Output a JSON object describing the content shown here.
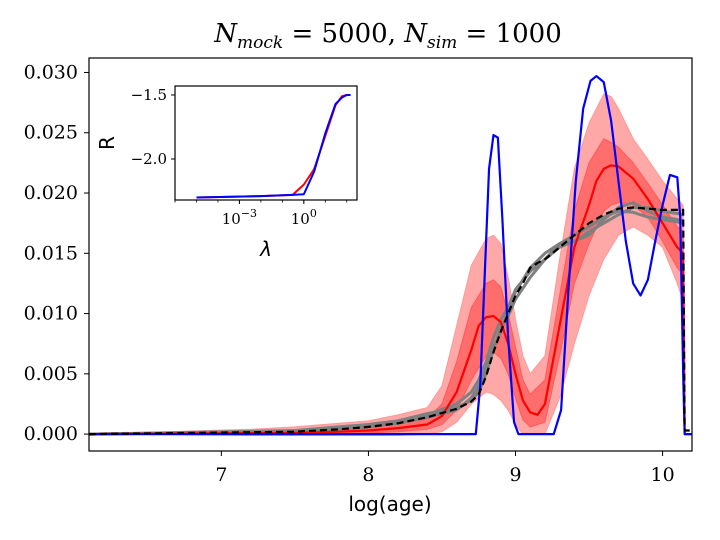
{
  "title": {
    "n_mock_symbol": "N",
    "n_mock_sub": "mock",
    "n_mock_value": "5000",
    "n_sim_symbol": "N",
    "n_sim_sub": "sim",
    "n_sim_value": "1000"
  },
  "colors": {
    "truth": "#0000ff",
    "median": "#ff0000",
    "band_outer": "#ff9999",
    "band_inner": "#ff5a5a",
    "samples": "#808080",
    "reference": "#000000"
  },
  "chart_data": [
    {
      "type": "line",
      "xlabel": "log(age)",
      "ylabel": "",
      "xlim": [
        6.1,
        10.2
      ],
      "ylim": [
        -0.0014,
        0.0312
      ],
      "x_ticks": [
        7,
        8,
        9,
        10
      ],
      "y_ticks": [
        0.0,
        0.005,
        0.01,
        0.015,
        0.02,
        0.025,
        0.03
      ],
      "y_tick_labels": [
        "0.000",
        "0.005",
        "0.010",
        "0.015",
        "0.020",
        "0.025",
        "0.030"
      ],
      "grid": false,
      "legend": "none",
      "series": [
        {
          "role": "truth",
          "color": "#0000ff",
          "x": [
            6.1,
            8.73,
            8.76,
            8.79,
            8.82,
            8.85,
            8.88,
            8.91,
            8.95,
            8.99,
            9.02,
            9.06,
            9.1,
            9.18,
            9.26,
            9.31,
            9.36,
            9.41,
            9.46,
            9.51,
            9.55,
            9.6,
            9.65,
            9.7,
            9.75,
            9.8,
            9.85,
            9.9,
            9.95,
            10.0,
            10.05,
            10.1,
            10.12,
            10.14,
            10.15,
            10.2
          ],
          "y": [
            0.0,
            0.0,
            0.004,
            0.013,
            0.022,
            0.0248,
            0.0246,
            0.018,
            0.008,
            0.001,
            0.0,
            0.0,
            0.0,
            0.0,
            0.0,
            0.002,
            0.012,
            0.021,
            0.027,
            0.0293,
            0.0297,
            0.0292,
            0.026,
            0.021,
            0.016,
            0.0125,
            0.0115,
            0.0128,
            0.016,
            0.019,
            0.0215,
            0.0213,
            0.018,
            0.005,
            0.0,
            0.0
          ]
        },
        {
          "role": "median",
          "color": "#ff0000",
          "x": [
            6.1,
            7.5,
            7.8,
            8.0,
            8.2,
            8.4,
            8.5,
            8.6,
            8.7,
            8.75,
            8.8,
            8.85,
            8.9,
            8.95,
            9.0,
            9.05,
            9.1,
            9.15,
            9.2,
            9.3,
            9.4,
            9.5,
            9.55,
            9.6,
            9.65,
            9.7,
            9.8,
            9.9,
            10.0,
            10.1,
            10.14,
            10.15,
            10.2
          ],
          "y": [
            0.0,
            0.0001,
            0.0002,
            0.0003,
            0.0005,
            0.0008,
            0.0015,
            0.0035,
            0.007,
            0.009,
            0.0097,
            0.0098,
            0.0093,
            0.0075,
            0.005,
            0.0028,
            0.0018,
            0.0016,
            0.0025,
            0.009,
            0.0155,
            0.019,
            0.021,
            0.022,
            0.0223,
            0.0222,
            0.0212,
            0.0195,
            0.0175,
            0.0155,
            0.015,
            0.0,
            0.0
          ]
        },
        {
          "role": "band_outer_upper",
          "color": "#ff9999",
          "x": [
            6.1,
            7.2,
            7.5,
            7.8,
            8.0,
            8.2,
            8.4,
            8.5,
            8.6,
            8.7,
            8.8,
            8.85,
            8.9,
            8.95,
            9.0,
            9.05,
            9.1,
            9.2,
            9.3,
            9.4,
            9.5,
            9.6,
            9.65,
            9.7,
            9.8,
            9.9,
            10.0,
            10.1,
            10.14
          ],
          "y": [
            0.0,
            0.0004,
            0.0006,
            0.0009,
            0.0011,
            0.0016,
            0.0022,
            0.004,
            0.009,
            0.014,
            0.0162,
            0.0165,
            0.0158,
            0.013,
            0.0095,
            0.0065,
            0.005,
            0.0065,
            0.0145,
            0.022,
            0.0258,
            0.0282,
            0.028,
            0.027,
            0.0245,
            0.0228,
            0.021,
            0.0195,
            0.019
          ]
        },
        {
          "role": "band_outer_lower",
          "color": "#ff9999",
          "x": [
            6.1,
            7.2,
            7.5,
            7.8,
            8.0,
            8.2,
            8.4,
            8.5,
            8.6,
            8.7,
            8.8,
            8.85,
            8.9,
            8.95,
            9.0,
            9.05,
            9.1,
            9.2,
            9.3,
            9.4,
            9.5,
            9.6,
            9.65,
            9.7,
            9.8,
            9.9,
            10.0,
            10.1,
            10.14
          ],
          "y": [
            0.0,
            -0.0001,
            -0.0001,
            -0.0001,
            -0.0001,
            -0.0001,
            0.0,
            0.0002,
            0.001,
            0.0025,
            0.0035,
            0.0033,
            0.0028,
            0.002,
            0.0008,
            0.0,
            0.0,
            0.0,
            0.003,
            0.0075,
            0.0115,
            0.0145,
            0.0155,
            0.0165,
            0.0172,
            0.0165,
            0.0155,
            0.0125,
            0.011
          ]
        },
        {
          "role": "band_inner_upper",
          "color": "#ff5a5a",
          "x": [
            6.1,
            7.5,
            8.0,
            8.2,
            8.4,
            8.5,
            8.6,
            8.7,
            8.8,
            8.85,
            8.9,
            8.95,
            9.0,
            9.05,
            9.1,
            9.2,
            9.3,
            9.4,
            9.5,
            9.6,
            9.65,
            9.7,
            9.8,
            9.9,
            10.0,
            10.1,
            10.14
          ],
          "y": [
            0.0,
            0.0003,
            0.0006,
            0.0009,
            0.0013,
            0.0025,
            0.006,
            0.0105,
            0.0125,
            0.0128,
            0.0122,
            0.01,
            0.0072,
            0.0045,
            0.0033,
            0.0045,
            0.0115,
            0.0185,
            0.0225,
            0.0245,
            0.0242,
            0.0238,
            0.0225,
            0.0208,
            0.019,
            0.0172,
            0.0168
          ]
        },
        {
          "role": "band_inner_lower",
          "color": "#ff5a5a",
          "x": [
            6.1,
            7.5,
            8.0,
            8.2,
            8.4,
            8.5,
            8.6,
            8.7,
            8.8,
            8.85,
            8.9,
            8.95,
            9.0,
            9.05,
            9.1,
            9.2,
            9.3,
            9.4,
            9.5,
            9.6,
            9.65,
            9.7,
            9.8,
            9.9,
            10.0,
            10.1,
            10.14
          ],
          "y": [
            0.0,
            0.0,
            0.0001,
            0.0002,
            0.0004,
            0.0008,
            0.002,
            0.0045,
            0.0065,
            0.0068,
            0.0063,
            0.005,
            0.003,
            0.0012,
            0.0006,
            0.001,
            0.0065,
            0.0125,
            0.0158,
            0.0185,
            0.019,
            0.0192,
            0.019,
            0.018,
            0.016,
            0.0138,
            0.0132
          ]
        },
        {
          "role": "sample",
          "color": "#808080",
          "x": [
            6.1,
            7.5,
            7.8,
            8.0,
            8.2,
            8.4,
            8.6,
            8.7,
            8.75,
            8.8,
            8.85,
            8.9,
            8.95,
            9.0,
            9.1,
            9.2,
            9.3,
            9.4,
            9.5,
            9.6,
            9.7,
            9.8,
            9.9,
            10.0,
            10.1,
            10.14
          ],
          "y": [
            0.0,
            0.0002,
            0.0005,
            0.0007,
            0.001,
            0.0016,
            0.0025,
            0.0035,
            0.0045,
            0.006,
            0.008,
            0.0095,
            0.0105,
            0.012,
            0.0135,
            0.0145,
            0.0155,
            0.016,
            0.0168,
            0.0175,
            0.0182,
            0.0188,
            0.0188,
            0.0185,
            0.0183,
            0.0182
          ]
        },
        {
          "role": "sample",
          "color": "#808080",
          "x": [
            6.1,
            7.5,
            7.8,
            8.0,
            8.2,
            8.4,
            8.6,
            8.7,
            8.75,
            8.8,
            8.85,
            8.9,
            8.95,
            9.0,
            9.1,
            9.2,
            9.3,
            9.4,
            9.5,
            9.6,
            9.7,
            9.8,
            9.9,
            10.0,
            10.1,
            10.14
          ],
          "y": [
            0.0,
            0.0003,
            0.0006,
            0.0008,
            0.0011,
            0.0017,
            0.0022,
            0.0028,
            0.0035,
            0.005,
            0.007,
            0.0088,
            0.0098,
            0.0112,
            0.013,
            0.0145,
            0.0158,
            0.0165,
            0.0172,
            0.018,
            0.0185,
            0.0184,
            0.018,
            0.0178,
            0.0176,
            0.0175
          ]
        },
        {
          "role": "sample",
          "color": "#808080",
          "x": [
            6.1,
            7.5,
            7.8,
            8.0,
            8.2,
            8.4,
            8.6,
            8.7,
            8.75,
            8.8,
            8.85,
            8.9,
            8.95,
            9.0,
            9.1,
            9.2,
            9.3,
            9.4,
            9.5,
            9.6,
            9.7,
            9.8,
            9.9,
            10.0,
            10.1,
            10.14
          ],
          "y": [
            0.0,
            0.0002,
            0.0004,
            0.0006,
            0.0009,
            0.0014,
            0.002,
            0.003,
            0.004,
            0.0055,
            0.0072,
            0.0085,
            0.0102,
            0.0118,
            0.0138,
            0.015,
            0.0158,
            0.016,
            0.0165,
            0.0178,
            0.0188,
            0.0192,
            0.0185,
            0.018,
            0.0178,
            0.0177
          ]
        },
        {
          "role": "reference",
          "color": "#000000",
          "dash": true,
          "x": [
            6.1,
            7.5,
            7.8,
            8.0,
            8.2,
            8.4,
            8.6,
            8.7,
            8.75,
            8.8,
            8.85,
            8.9,
            8.95,
            9.0,
            9.05,
            9.1,
            9.15,
            9.2,
            9.3,
            9.4,
            9.5,
            9.6,
            9.7,
            9.8,
            9.9,
            10.0,
            10.1,
            10.14,
            10.15,
            10.2
          ],
          "y": [
            0.0,
            0.0002,
            0.0004,
            0.0006,
            0.0009,
            0.0014,
            0.0021,
            0.0027,
            0.0033,
            0.0048,
            0.0068,
            0.0085,
            0.01,
            0.0115,
            0.0125,
            0.0138,
            0.0142,
            0.0145,
            0.0155,
            0.0165,
            0.0175,
            0.0182,
            0.0187,
            0.0188,
            0.0187,
            0.0186,
            0.0186,
            0.0186,
            0.0003,
            0.0003
          ]
        }
      ]
    },
    {
      "type": "line",
      "xlabel": "λ",
      "ylabel": "R",
      "x_scale": "log",
      "xlim": [
        1e-06,
        300
      ],
      "ylim": [
        -2.32,
        -1.43
      ],
      "x_ticks": [
        0.001,
        1
      ],
      "x_tick_exponents": [
        "−3",
        "0"
      ],
      "x_tick_base": "10",
      "y_ticks": [
        -1.5,
        -2.0
      ],
      "y_tick_labels": [
        "−1.5",
        "−2.0"
      ],
      "grid": false,
      "legend": "none",
      "series": [
        {
          "color": "#ff0000",
          "x": [
            1e-05,
            0.01,
            0.3,
            1,
            3,
            10,
            30,
            60,
            100,
            150
          ],
          "y": [
            -2.3,
            -2.29,
            -2.28,
            -2.2,
            -2.08,
            -1.82,
            -1.58,
            -1.51,
            -1.5,
            -1.5
          ]
        },
        {
          "color": "#0000ff",
          "x": [
            1e-05,
            0.01,
            0.3,
            1,
            3,
            10,
            30,
            60,
            100,
            150
          ],
          "y": [
            -2.3,
            -2.29,
            -2.28,
            -2.275,
            -2.1,
            -1.8,
            -1.57,
            -1.52,
            -1.5,
            -1.5
          ]
        }
      ]
    }
  ]
}
